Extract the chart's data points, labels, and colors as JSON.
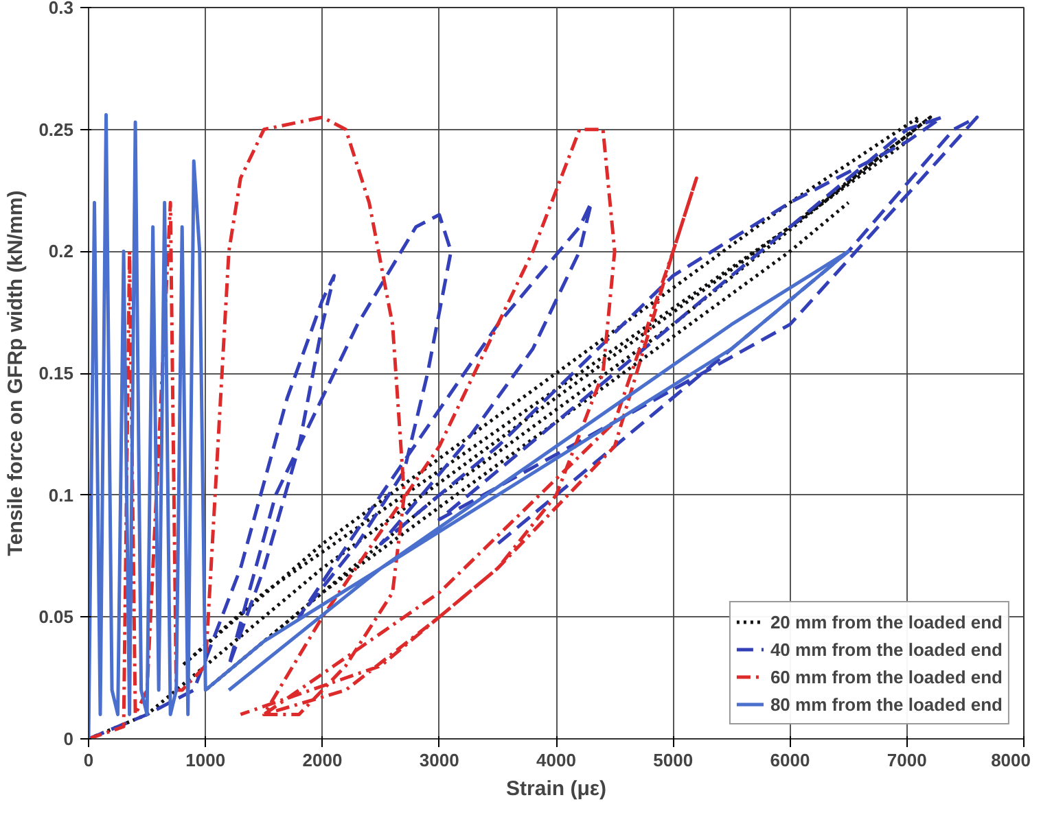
{
  "chart_data": {
    "type": "line",
    "xlabel": "Strain (με)",
    "ylabel": "Tensile force on GFRp width (kN/mm)",
    "xlim": [
      0,
      8000
    ],
    "ylim": [
      0,
      0.3
    ],
    "xticks": [
      0,
      1000,
      2000,
      3000,
      4000,
      5000,
      6000,
      7000,
      8000
    ],
    "yticks": [
      0,
      0.05,
      0.1,
      0.15,
      0.2,
      0.25,
      0.3
    ],
    "grid": true,
    "legend": "bottom right",
    "series": [
      {
        "name": "20 mm from the loaded end",
        "color": "#111111",
        "line_style": "dotted",
        "x": [
          0,
          500,
          1000,
          2000,
          3000,
          4000,
          5000,
          6000,
          7000,
          7100,
          6000,
          4000,
          2000,
          800,
          1500,
          3000,
          4500,
          6000,
          7200,
          6800,
          5000,
          3000,
          1000,
          2000,
          4000,
          6000,
          6500
        ],
        "values": [
          0,
          0.01,
          0.03,
          0.07,
          0.105,
          0.14,
          0.175,
          0.21,
          0.245,
          0.255,
          0.22,
          0.15,
          0.08,
          0.03,
          0.06,
          0.11,
          0.16,
          0.21,
          0.255,
          0.24,
          0.17,
          0.1,
          0.02,
          0.06,
          0.13,
          0.2,
          0.22
        ]
      },
      {
        "name": "40 mm from the loaded end",
        "color": "#3340b8",
        "line_style": "dashed",
        "x": [
          0,
          500,
          900,
          1300,
          1700,
          2000,
          2100,
          2000,
          1800,
          1500,
          1200,
          1600,
          2300,
          2800,
          3000,
          3100,
          2900,
          2700,
          2300,
          1800,
          2500,
          3500,
          4200,
          4300,
          4200,
          3800,
          3200,
          2500,
          3500,
          5000,
          6000,
          7000,
          7300,
          7000,
          5500,
          4000,
          3000,
          4500,
          6000,
          7600,
          7400,
          6500,
          5000,
          3500
        ],
        "values": [
          0,
          0.01,
          0.02,
          0.07,
          0.14,
          0.18,
          0.19,
          0.17,
          0.12,
          0.07,
          0.03,
          0.1,
          0.17,
          0.21,
          0.215,
          0.2,
          0.15,
          0.11,
          0.08,
          0.05,
          0.1,
          0.17,
          0.21,
          0.22,
          0.2,
          0.16,
          0.12,
          0.08,
          0.12,
          0.19,
          0.22,
          0.245,
          0.255,
          0.25,
          0.19,
          0.13,
          0.09,
          0.13,
          0.17,
          0.255,
          0.25,
          0.2,
          0.14,
          0.08
        ]
      },
      {
        "name": "60 mm from the loaded end",
        "color": "#dd2a2a",
        "line_style": "dashdot",
        "x": [
          0,
          300,
          350,
          400,
          500,
          700,
          750,
          800,
          1000,
          1200,
          1300,
          1500,
          2000,
          2200,
          2400,
          2600,
          2700,
          2600,
          2200,
          1800,
          1500,
          2000,
          3000,
          3800,
          4200,
          4400,
          4500,
          4400,
          4000,
          3500,
          3000,
          2200,
          1500,
          3000,
          4500,
          5000,
          5200,
          5000,
          4500,
          3500,
          2500,
          1300
        ],
        "values": [
          0,
          0.005,
          0.2,
          0.01,
          0.02,
          0.22,
          0.02,
          0.02,
          0.03,
          0.2,
          0.23,
          0.25,
          0.255,
          0.25,
          0.22,
          0.17,
          0.1,
          0.06,
          0.03,
          0.01,
          0.01,
          0.05,
          0.12,
          0.2,
          0.25,
          0.25,
          0.2,
          0.15,
          0.1,
          0.07,
          0.05,
          0.02,
          0.01,
          0.06,
          0.13,
          0.2,
          0.23,
          0.2,
          0.12,
          0.07,
          0.03,
          0.01
        ]
      },
      {
        "name": "80 mm from the loaded end",
        "color": "#4a6fcc",
        "line_style": "solid",
        "x": [
          0,
          50,
          100,
          150,
          200,
          250,
          300,
          350,
          400,
          450,
          500,
          550,
          600,
          650,
          700,
          750,
          800,
          850,
          900,
          950,
          1000,
          1000,
          1500,
          2500,
          3500,
          4500,
          5500,
          6500,
          5500,
          4000,
          2500,
          1200
        ],
        "values": [
          0,
          0.22,
          0.01,
          0.256,
          0.02,
          0.01,
          0.2,
          0.01,
          0.253,
          0.02,
          0.01,
          0.21,
          0.02,
          0.22,
          0.01,
          0.02,
          0.21,
          0.01,
          0.237,
          0.2,
          0.02,
          0.02,
          0.04,
          0.07,
          0.1,
          0.13,
          0.16,
          0.2,
          0.17,
          0.12,
          0.07,
          0.02
        ]
      }
    ]
  }
}
